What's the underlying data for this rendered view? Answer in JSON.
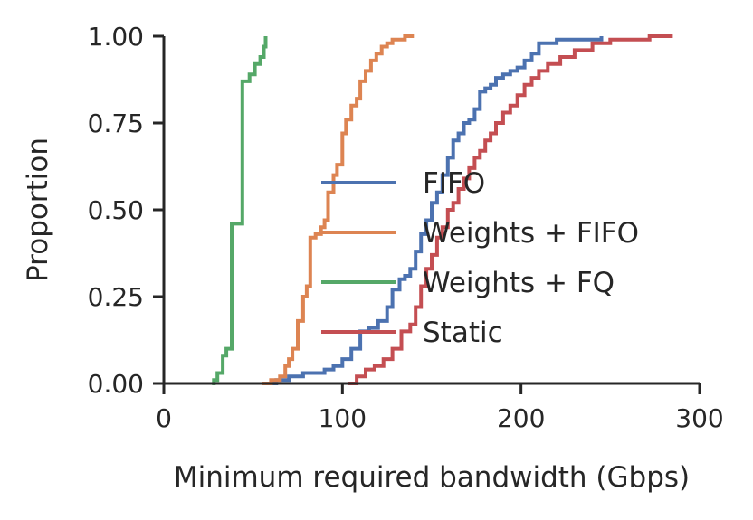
{
  "chart_data": {
    "type": "line",
    "title": "",
    "xlabel": "Minimum required bandwidth (Gbps)",
    "ylabel": "Proportion",
    "xlim": [
      0,
      300
    ],
    "ylim": [
      0,
      1.0
    ],
    "xticks": [
      0,
      100,
      200,
      300
    ],
    "xtick_labels": [
      "0",
      "100",
      "200",
      "300"
    ],
    "yticks": [
      0,
      0.25,
      0.5,
      0.75,
      1.0
    ],
    "ytick_labels": [
      "0.00",
      "0.25",
      "0.50",
      "0.75",
      "1.00"
    ],
    "grid": false,
    "legend_position": "center",
    "series": [
      {
        "name": "FIFO",
        "color": "#4c72b0",
        "x": [
          57,
          63,
          70,
          78,
          85,
          90,
          95,
          100,
          105,
          110,
          115,
          120,
          125,
          128,
          132,
          135,
          138,
          141,
          144,
          147,
          150,
          153,
          156,
          159,
          162,
          165,
          168,
          171,
          174,
          177,
          180,
          183,
          186,
          190,
          194,
          198,
          202,
          206,
          210,
          214,
          220,
          230,
          245
        ],
        "y": [
          0.0,
          0.01,
          0.02,
          0.03,
          0.03,
          0.04,
          0.05,
          0.07,
          0.1,
          0.15,
          0.16,
          0.18,
          0.22,
          0.27,
          0.3,
          0.31,
          0.33,
          0.38,
          0.43,
          0.47,
          0.52,
          0.55,
          0.6,
          0.65,
          0.7,
          0.72,
          0.75,
          0.76,
          0.79,
          0.84,
          0.85,
          0.86,
          0.88,
          0.89,
          0.9,
          0.91,
          0.93,
          0.95,
          0.98,
          0.98,
          0.99,
          0.99,
          1.0
        ]
      },
      {
        "name": "Weights + FIFO",
        "color": "#dd8452",
        "x": [
          55,
          60,
          65,
          68,
          70,
          72,
          75,
          78,
          80,
          82,
          85,
          88,
          90,
          92,
          95,
          97,
          100,
          102,
          105,
          108,
          110,
          113,
          116,
          119,
          122,
          125,
          128,
          131,
          135,
          140
        ],
        "y": [
          0.0,
          0.01,
          0.02,
          0.05,
          0.07,
          0.1,
          0.18,
          0.25,
          0.28,
          0.42,
          0.43,
          0.45,
          0.47,
          0.55,
          0.6,
          0.63,
          0.72,
          0.76,
          0.8,
          0.82,
          0.87,
          0.9,
          0.93,
          0.95,
          0.97,
          0.98,
          0.99,
          0.99,
          1.0,
          1.0
        ]
      },
      {
        "name": "Weights + FQ",
        "color": "#55a868",
        "x": [
          27,
          28,
          30,
          33,
          35,
          38,
          44,
          48,
          51,
          54,
          56,
          57
        ],
        "y": [
          0.0,
          0.01,
          0.03,
          0.08,
          0.1,
          0.46,
          0.87,
          0.89,
          0.92,
          0.94,
          0.97,
          1.0
        ]
      },
      {
        "name": "Static",
        "color": "#c44e52",
        "x": [
          103,
          108,
          113,
          118,
          123,
          128,
          133,
          138,
          141,
          144,
          147,
          150,
          153,
          156,
          159,
          162,
          165,
          168,
          171,
          174,
          177,
          180,
          183,
          186,
          190,
          194,
          198,
          202,
          206,
          210,
          215,
          222,
          230,
          240,
          250,
          262,
          272,
          285
        ],
        "y": [
          0.0,
          0.02,
          0.04,
          0.05,
          0.07,
          0.1,
          0.15,
          0.17,
          0.22,
          0.28,
          0.33,
          0.37,
          0.42,
          0.45,
          0.5,
          0.52,
          0.56,
          0.59,
          0.62,
          0.65,
          0.67,
          0.7,
          0.72,
          0.75,
          0.78,
          0.8,
          0.83,
          0.86,
          0.88,
          0.9,
          0.92,
          0.94,
          0.96,
          0.98,
          0.99,
          0.99,
          1.0,
          1.0
        ]
      }
    ]
  }
}
